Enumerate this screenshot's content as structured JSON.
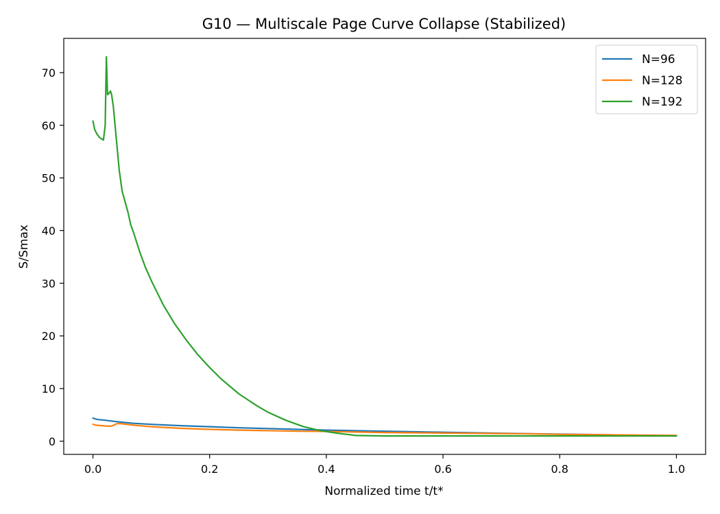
{
  "chart_data": {
    "type": "line",
    "title": "G10 — Multiscale Page Curve Collapse (Stabilized)",
    "xlabel": "Normalized time t/t*",
    "ylabel": "S/Smax",
    "xlim": [
      -0.05,
      1.05
    ],
    "ylim": [
      -2.5,
      76.5
    ],
    "xticks": [
      0.0,
      0.2,
      0.4,
      0.6,
      0.8,
      1.0
    ],
    "xtick_labels": [
      "0.0",
      "0.2",
      "0.4",
      "0.6",
      "0.8",
      "1.0"
    ],
    "yticks": [
      0,
      10,
      20,
      30,
      40,
      50,
      60,
      70
    ],
    "ytick_labels": [
      "0",
      "10",
      "20",
      "30",
      "40",
      "50",
      "60",
      "70"
    ],
    "legend_position": "top-right",
    "grid": false,
    "series": [
      {
        "name": "N=96",
        "color": "#1f77b4",
        "x": [
          0.0,
          0.005,
          0.01,
          0.02,
          0.03,
          0.05,
          0.07,
          0.1,
          0.15,
          0.2,
          0.25,
          0.3,
          0.35,
          0.4,
          0.45,
          0.5,
          0.55,
          0.6,
          0.65,
          0.7,
          0.75,
          0.8,
          0.85,
          0.9,
          0.95,
          1.0
        ],
        "y": [
          4.4,
          4.2,
          4.1,
          4.0,
          3.85,
          3.6,
          3.4,
          3.2,
          2.95,
          2.75,
          2.55,
          2.4,
          2.25,
          2.1,
          2.0,
          1.9,
          1.8,
          1.7,
          1.6,
          1.5,
          1.42,
          1.35,
          1.27,
          1.2,
          1.12,
          1.05
        ]
      },
      {
        "name": "N=128",
        "color": "#ff7f0e",
        "x": [
          0.0,
          0.005,
          0.01,
          0.02,
          0.03,
          0.035,
          0.04,
          0.045,
          0.05,
          0.07,
          0.1,
          0.15,
          0.2,
          0.25,
          0.3,
          0.35,
          0.4,
          0.45,
          0.5,
          0.55,
          0.6,
          0.65,
          0.7,
          0.75,
          0.8,
          0.85,
          0.9,
          0.95,
          1.0
        ],
        "y": [
          3.2,
          3.05,
          3.0,
          2.9,
          2.85,
          3.0,
          3.3,
          3.35,
          3.3,
          3.05,
          2.75,
          2.45,
          2.25,
          2.1,
          2.0,
          1.9,
          1.85,
          1.75,
          1.65,
          1.6,
          1.55,
          1.5,
          1.45,
          1.4,
          1.3,
          1.25,
          1.2,
          1.15,
          1.1
        ]
      },
      {
        "name": "N=192",
        "color": "#2ca02c",
        "x": [
          0.0,
          0.003,
          0.007,
          0.012,
          0.018,
          0.021,
          0.023,
          0.025,
          0.027,
          0.03,
          0.032,
          0.035,
          0.04,
          0.045,
          0.05,
          0.055,
          0.06,
          0.065,
          0.07,
          0.08,
          0.09,
          0.1,
          0.12,
          0.14,
          0.16,
          0.18,
          0.2,
          0.22,
          0.25,
          0.28,
          0.3,
          0.33,
          0.36,
          0.39,
          0.42,
          0.45,
          0.5,
          0.6,
          0.7,
          0.8,
          0.9,
          1.0
        ],
        "y": [
          60.8,
          59.2,
          58.3,
          57.6,
          57.2,
          60.0,
          73.0,
          65.8,
          66.0,
          66.5,
          65.8,
          63.5,
          57.5,
          51.5,
          47.5,
          45.5,
          43.5,
          41.0,
          39.5,
          36.0,
          33.0,
          30.5,
          26.0,
          22.3,
          19.2,
          16.4,
          14.0,
          11.8,
          9.0,
          6.8,
          5.5,
          4.0,
          2.8,
          2.0,
          1.5,
          1.1,
          1.0,
          1.0,
          1.0,
          1.0,
          1.0,
          1.0
        ]
      }
    ]
  }
}
